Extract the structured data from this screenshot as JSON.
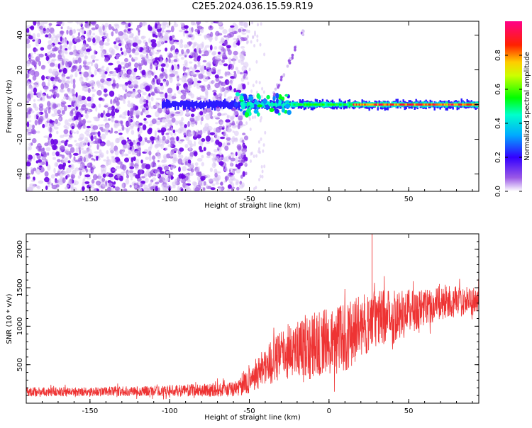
{
  "figure_title": "C2E5.2024.036.15.59.R19",
  "chart_data": [
    {
      "type": "heatmap",
      "title": "",
      "xlabel": "Height of straight line (km)",
      "ylabel": "Frequency (Hz)",
      "xlim": [
        -190,
        94
      ],
      "ylim": [
        -50,
        48
      ],
      "x_ticks": [
        -150,
        -100,
        -50,
        0,
        50
      ],
      "y_ticks": [
        -40,
        -20,
        0,
        20,
        40
      ],
      "x_tick_labels": [
        "-150",
        "-100",
        "-50",
        "0",
        "50"
      ],
      "y_tick_labels": [
        "-40",
        "-20",
        "0",
        "20",
        "40"
      ],
      "grid": false,
      "colorbar": {
        "label": "Normalized spectral amplitude",
        "range": [
          0,
          1
        ],
        "ticks": [
          0.0,
          0.2,
          0.4,
          0.6,
          0.8
        ],
        "tick_labels": [
          "0.0",
          "0.2",
          "0.4",
          "0.6",
          "0.8"
        ],
        "colormap": [
          "#ffffff",
          "#8a2be2",
          "#0000ff",
          "#00ffff",
          "#00ff00",
          "#ffff00",
          "#ff0000",
          "#ff00aa"
        ]
      },
      "noise_region": {
        "x": [
          -190,
          -52
        ],
        "freq": [
          -50,
          48
        ],
        "amplitude": 0.25
      },
      "ridge": {
        "freq": 0,
        "segments": [
          {
            "x": [
              -105,
              -55
            ],
            "amplitude": 0.3
          },
          {
            "x": [
              -55,
              -25
            ],
            "amplitude": 0.45
          },
          {
            "x": [
              -25,
              15
            ],
            "amplitude": 0.6
          },
          {
            "x": [
              15,
              94
            ],
            "amplitude": 0.95
          }
        ]
      },
      "streak": {
        "x": [
          -35,
          -15
        ],
        "freq": [
          5,
          44
        ]
      }
    },
    {
      "type": "line",
      "title": "",
      "xlabel": "Height of straight line (km)",
      "ylabel": "SNR (10 * v/v)",
      "xlim": [
        -190,
        94
      ],
      "ylim": [
        0,
        2200
      ],
      "x_ticks": [
        -150,
        -100,
        -50,
        0,
        50
      ],
      "y_ticks": [
        500,
        1000,
        1500,
        2000
      ],
      "x_tick_labels": [
        "-150",
        "-100",
        "-50",
        "0",
        "50"
      ],
      "y_tick_labels": [
        "500",
        "1000",
        "1500",
        "2000"
      ],
      "grid": false,
      "color": "#ee3333",
      "envelope": {
        "x": [
          -190,
          -150,
          -100,
          -60,
          -52,
          -45,
          -35,
          -25,
          -15,
          0,
          10,
          20,
          30,
          40,
          50,
          60,
          70,
          80,
          94
        ],
        "mid": [
          150,
          150,
          160,
          180,
          250,
          400,
          550,
          700,
          750,
          800,
          850,
          1000,
          1100,
          1150,
          1200,
          1250,
          1300,
          1320,
          1330
        ],
        "amp": [
          60,
          60,
          70,
          100,
          150,
          220,
          300,
          350,
          400,
          450,
          450,
          400,
          380,
          350,
          300,
          250,
          220,
          200,
          180
        ]
      },
      "peak": {
        "x": 27,
        "y": 2200
      }
    }
  ]
}
